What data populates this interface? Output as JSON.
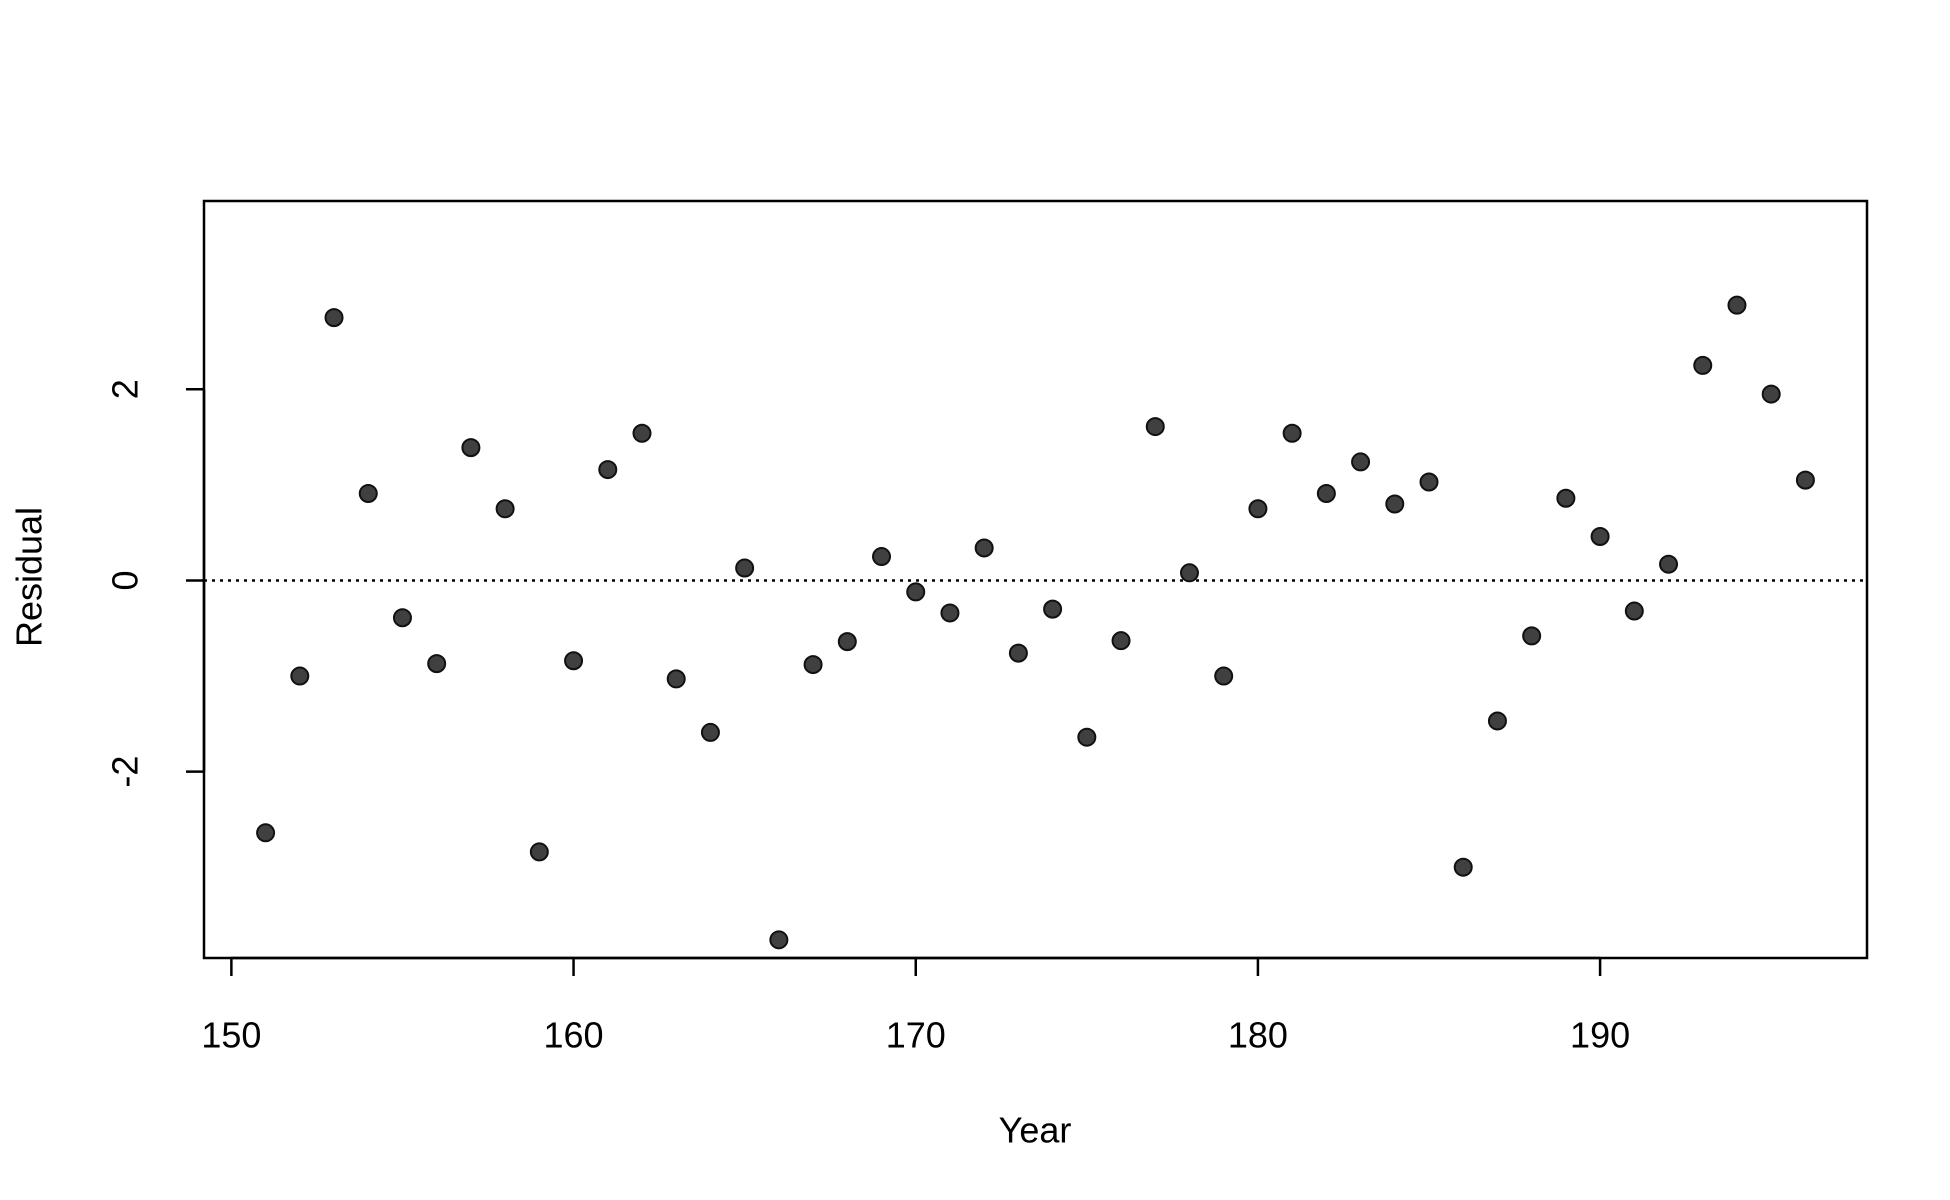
{
  "chart_data": {
    "type": "scatter",
    "xlabel": "Year",
    "ylabel": "Residual",
    "x": [
      151,
      152,
      153,
      154,
      155,
      156,
      157,
      158,
      159,
      160,
      161,
      162,
      163,
      164,
      165,
      166,
      167,
      168,
      169,
      170,
      171,
      172,
      173,
      174,
      175,
      176,
      177,
      178,
      179,
      180,
      181,
      182,
      183,
      184,
      185,
      186,
      187,
      188,
      189,
      190,
      191,
      192,
      193,
      194,
      195,
      196
    ],
    "values": [
      -2.64,
      -1.0,
      2.75,
      0.91,
      -0.39,
      -0.87,
      1.39,
      0.75,
      -2.84,
      -0.84,
      1.16,
      1.54,
      -1.03,
      -1.59,
      0.13,
      -3.76,
      -0.88,
      -0.64,
      0.25,
      -0.12,
      -0.34,
      0.34,
      -0.76,
      -0.3,
      -1.64,
      -0.63,
      1.61,
      0.08,
      -1.0,
      0.75,
      1.54,
      0.91,
      1.24,
      0.8,
      1.03,
      -3.0,
      -1.47,
      -0.58,
      0.86,
      0.46,
      -0.32,
      0.17,
      2.25,
      2.88,
      1.95,
      1.05
    ],
    "color": "#404040",
    "xlim": [
      149.2,
      197.8
    ],
    "xticks": [
      150,
      160,
      170,
      180,
      190
    ],
    "ylim": [
      -3.95,
      3.97
    ],
    "yticks": [
      -2,
      0,
      2
    ],
    "reference_line": 0
  }
}
